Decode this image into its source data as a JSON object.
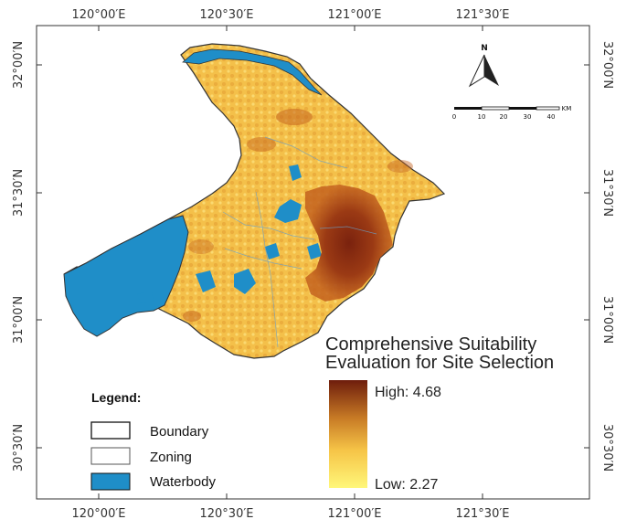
{
  "map": {
    "top_lon_labels": [
      "120°00′E",
      "120°30′E",
      "121°00′E",
      "121°30′E"
    ],
    "bottom_lon_labels": [
      "120°00′E",
      "120°30′E",
      "121°00′E",
      "121°30′E"
    ],
    "left_lat_labels": [
      "32°00′N",
      "31°30′N",
      "31°00′N",
      "30°30′N"
    ],
    "right_lat_labels": [
      "32°00′N",
      "31°30′N",
      "31°00′N",
      "30°30′N"
    ]
  },
  "north_arrow": {
    "label": "N"
  },
  "scale_bar": {
    "labels": [
      "0",
      "10",
      "20",
      "30",
      "40"
    ],
    "unit": "KM"
  },
  "suitability": {
    "title_line1": "Comprehensive Suitability",
    "title_line2": "Evaluation for Site Selection",
    "high_label": "High: 4.68",
    "low_label": "Low: 2.27",
    "high_value": 4.68,
    "low_value": 2.27
  },
  "legend": {
    "title": "Legend:",
    "items": [
      {
        "label": "Boundary",
        "fill": "#ffffff"
      },
      {
        "label": "Zoning",
        "fill": "#ffffff"
      },
      {
        "label": "Waterbody",
        "fill": "#1f8ec8"
      }
    ]
  },
  "colors": {
    "water": "#1f8ec8",
    "low": "#fff77a",
    "mid": "#f0b93c",
    "high": "#6e1d0c"
  }
}
